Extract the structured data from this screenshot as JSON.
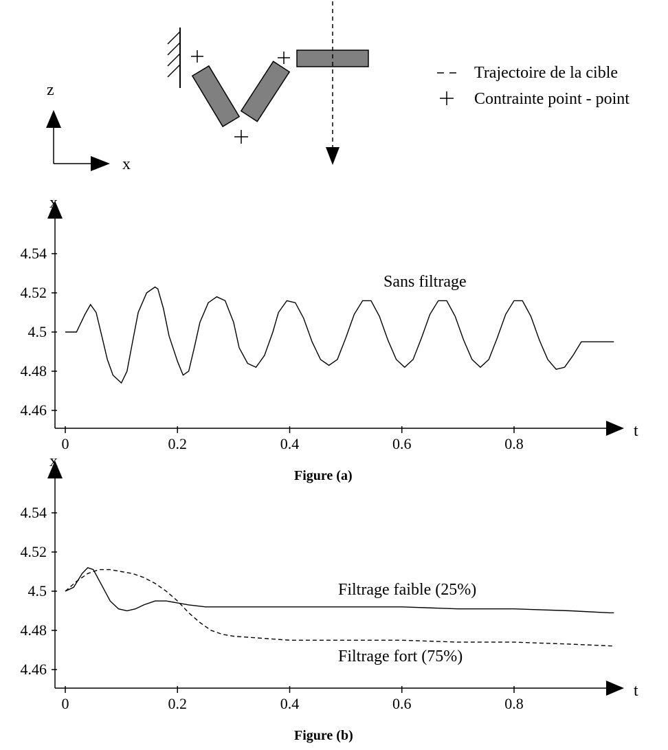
{
  "diagram": {
    "axis_z_label": "z",
    "axis_x_label": "x",
    "legend": [
      {
        "symbol": "- -",
        "label": "Trajectoire de la cible"
      },
      {
        "symbol": "+",
        "label": "Contrainte point - point"
      }
    ],
    "link_color": "#808080"
  },
  "chart_data": [
    {
      "type": "line",
      "caption": "Figure (a)",
      "xlabel": "t",
      "ylabel": "x",
      "xlim": [
        0,
        0.98
      ],
      "ylim": [
        4.45,
        4.56
      ],
      "xticks": [
        0,
        0.2,
        0.4,
        0.6,
        0.8
      ],
      "yticks": [
        4.46,
        4.48,
        4.5,
        4.52,
        4.54
      ],
      "xtick_labels": [
        "0",
        "0.2",
        "0.4",
        "0.6",
        "0.8"
      ],
      "ytick_labels": [
        "4.46",
        "4.48",
        "4.5",
        "4.52",
        "4.54"
      ],
      "annotations": [
        "Sans filtrage"
      ],
      "grid": false,
      "series": [
        {
          "style": "solid",
          "x": [
            0,
            0.02,
            0.035,
            0.045,
            0.055,
            0.065,
            0.075,
            0.085,
            0.1,
            0.11,
            0.12,
            0.13,
            0.145,
            0.16,
            0.165,
            0.175,
            0.185,
            0.2,
            0.21,
            0.22,
            0.23,
            0.24,
            0.255,
            0.27,
            0.285,
            0.3,
            0.31,
            0.325,
            0.34,
            0.355,
            0.37,
            0.38,
            0.395,
            0.41,
            0.425,
            0.44,
            0.455,
            0.47,
            0.485,
            0.5,
            0.515,
            0.53,
            0.545,
            0.56,
            0.575,
            0.59,
            0.605,
            0.62,
            0.635,
            0.65,
            0.665,
            0.68,
            0.695,
            0.71,
            0.725,
            0.74,
            0.755,
            0.77,
            0.785,
            0.8,
            0.815,
            0.83,
            0.845,
            0.86,
            0.875,
            0.89,
            0.905,
            0.92,
            0.935,
            0.95,
            0.965,
            0.978
          ],
          "y": [
            4.5,
            4.5,
            4.509,
            4.514,
            4.51,
            4.498,
            4.486,
            4.478,
            4.474,
            4.48,
            4.495,
            4.51,
            4.52,
            4.523,
            4.522,
            4.512,
            4.498,
            4.485,
            4.478,
            4.48,
            4.492,
            4.505,
            4.515,
            4.518,
            4.516,
            4.505,
            4.492,
            4.484,
            4.482,
            4.488,
            4.5,
            4.51,
            4.516,
            4.515,
            4.507,
            4.495,
            4.486,
            4.483,
            4.486,
            4.497,
            4.509,
            4.516,
            4.516,
            4.508,
            4.496,
            4.486,
            4.482,
            4.486,
            4.497,
            4.509,
            4.516,
            4.516,
            4.508,
            4.496,
            4.486,
            4.482,
            4.486,
            4.497,
            4.509,
            4.516,
            4.516,
            4.508,
            4.496,
            4.486,
            4.481,
            4.482,
            4.488,
            4.495,
            4.495,
            4.495,
            4.495,
            4.495
          ]
        }
      ]
    },
    {
      "type": "line",
      "caption": "Figure (b)",
      "xlabel": "t",
      "ylabel": "x",
      "xlim": [
        0,
        0.98
      ],
      "ylim": [
        4.45,
        4.56
      ],
      "xticks": [
        0,
        0.2,
        0.4,
        0.6,
        0.8
      ],
      "yticks": [
        4.46,
        4.48,
        4.5,
        4.52,
        4.54
      ],
      "xtick_labels": [
        "0",
        "0.2",
        "0.4",
        "0.6",
        "0.8"
      ],
      "ytick_labels": [
        "4.46",
        "4.48",
        "4.5",
        "4.52",
        "4.54"
      ],
      "annotations": [
        "Filtrage faible (25%)",
        "Filtrage fort (75%)"
      ],
      "grid": false,
      "series": [
        {
          "style": "solid",
          "label_ref": "Filtrage faible (25%)",
          "x": [
            0,
            0.015,
            0.03,
            0.04,
            0.05,
            0.065,
            0.08,
            0.095,
            0.11,
            0.125,
            0.14,
            0.16,
            0.18,
            0.2,
            0.22,
            0.25,
            0.3,
            0.4,
            0.5,
            0.6,
            0.7,
            0.8,
            0.9,
            0.97,
            0.978
          ],
          "y": [
            4.5,
            4.502,
            4.509,
            4.512,
            4.511,
            4.503,
            4.495,
            4.491,
            4.49,
            4.491,
            4.493,
            4.495,
            4.495,
            4.494,
            4.493,
            4.492,
            4.492,
            4.492,
            4.492,
            4.492,
            4.491,
            4.491,
            4.49,
            4.489,
            4.489
          ]
        },
        {
          "style": "dashed",
          "label_ref": "Filtrage fort (75%)",
          "x": [
            0,
            0.02,
            0.04,
            0.06,
            0.08,
            0.1,
            0.12,
            0.14,
            0.16,
            0.18,
            0.2,
            0.22,
            0.24,
            0.26,
            0.28,
            0.3,
            0.35,
            0.4,
            0.5,
            0.6,
            0.7,
            0.8,
            0.9,
            0.978
          ],
          "y": [
            4.5,
            4.505,
            4.509,
            4.511,
            4.511,
            4.51,
            4.509,
            4.507,
            4.504,
            4.5,
            4.495,
            4.489,
            4.484,
            4.48,
            4.478,
            4.477,
            4.476,
            4.475,
            4.475,
            4.475,
            4.474,
            4.474,
            4.473,
            4.472
          ]
        }
      ]
    }
  ]
}
